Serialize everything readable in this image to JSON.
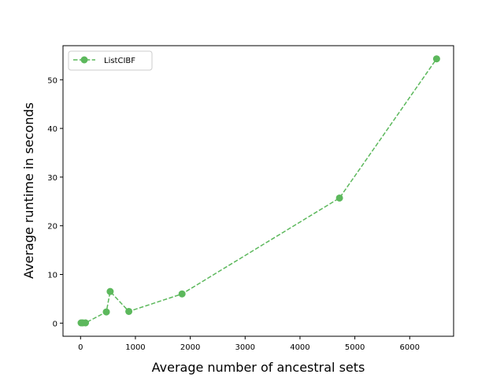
{
  "chart_data": {
    "type": "line",
    "xlabel": "Average number of ancestral sets",
    "ylabel": "Average runtime in seconds",
    "xlim": [
      -320,
      6800
    ],
    "ylim": [
      -2.7,
      57.0
    ],
    "x_ticks": [
      0,
      1000,
      2000,
      3000,
      4000,
      5000,
      6000
    ],
    "y_ticks": [
      0,
      10,
      20,
      30,
      40,
      50
    ],
    "grid": false,
    "legend_position": "upper-left",
    "series": [
      {
        "name": "ListCIBF",
        "color": "#5cb85c",
        "line_style": "dashed",
        "marker": "circle",
        "x": [
          10,
          40,
          90,
          470,
          540,
          880,
          1850,
          4720,
          6490
        ],
        "y": [
          0.05,
          0.05,
          0.05,
          2.3,
          6.5,
          2.4,
          6.0,
          25.7,
          54.3
        ]
      }
    ]
  }
}
